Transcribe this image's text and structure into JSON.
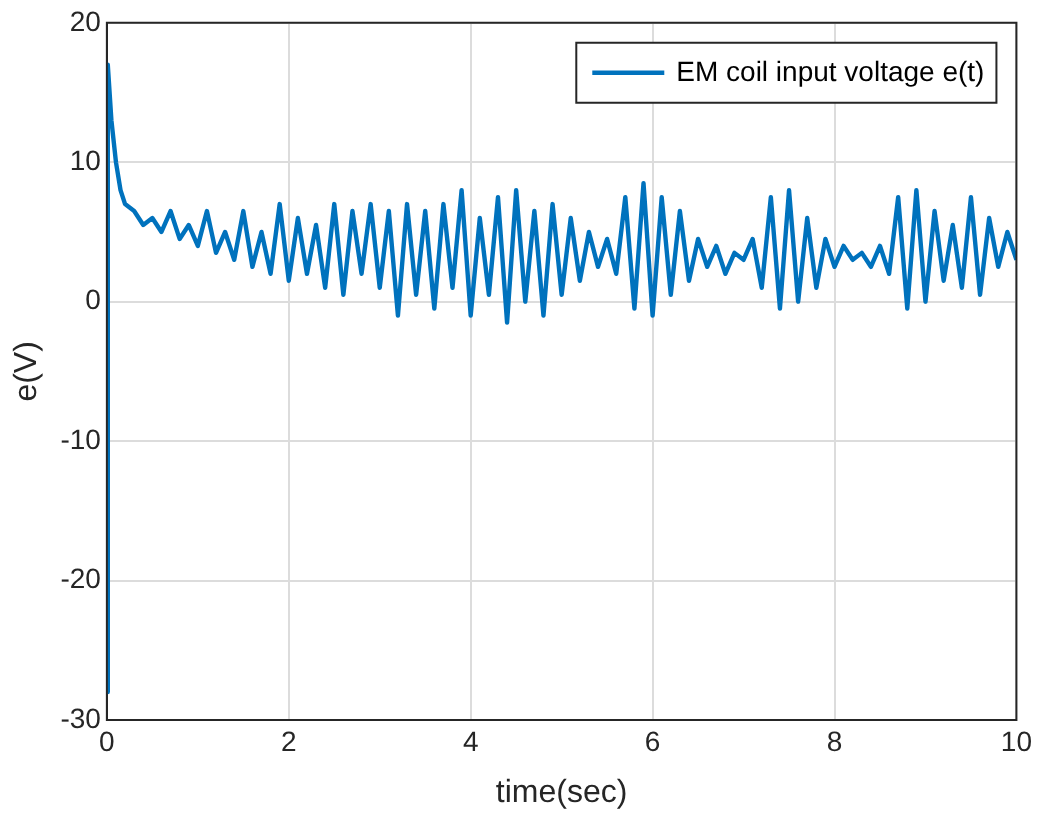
{
  "chart_data": {
    "type": "line",
    "xlabel": "time(sec)",
    "ylabel": "e(V)",
    "xlim": [
      0,
      10
    ],
    "ylim": [
      -30,
      20
    ],
    "xticks": [
      0,
      2,
      4,
      6,
      8,
      10
    ],
    "yticks": [
      -30,
      -20,
      -10,
      0,
      10,
      20
    ],
    "grid": true,
    "legend": "top right",
    "line_style": "solid",
    "marker": "none",
    "x": [
      0,
      0.01,
      0.05,
      0.1,
      0.15,
      0.2,
      0.3,
      0.4,
      0.5,
      0.6,
      0.7,
      0.8,
      0.9,
      1.0,
      1.1,
      1.2,
      1.3,
      1.4,
      1.5,
      1.6,
      1.7,
      1.8,
      1.9,
      2.0,
      2.1,
      2.2,
      2.3,
      2.4,
      2.5,
      2.6,
      2.7,
      2.8,
      2.9,
      3.0,
      3.1,
      3.2,
      3.3,
      3.4,
      3.5,
      3.6,
      3.7,
      3.8,
      3.9,
      4.0,
      4.1,
      4.2,
      4.3,
      4.4,
      4.5,
      4.6,
      4.7,
      4.8,
      4.9,
      5.0,
      5.1,
      5.2,
      5.3,
      5.4,
      5.5,
      5.6,
      5.7,
      5.8,
      5.9,
      6.0,
      6.1,
      6.2,
      6.3,
      6.4,
      6.5,
      6.6,
      6.7,
      6.8,
      6.9,
      7.0,
      7.1,
      7.2,
      7.3,
      7.4,
      7.5,
      7.6,
      7.7,
      7.8,
      7.9,
      8.0,
      8.1,
      8.2,
      8.3,
      8.4,
      8.5,
      8.6,
      8.7,
      8.8,
      8.9,
      9.0,
      9.1,
      9.2,
      9.3,
      9.4,
      9.5,
      9.6,
      9.7,
      9.8,
      9.9,
      10.0
    ],
    "series": [
      {
        "name": "EM coil input voltage e(t)",
        "color": "#0072bd",
        "values": [
          -28,
          17,
          13,
          10,
          8,
          7,
          6.5,
          5.5,
          6,
          5,
          6.5,
          4.5,
          5.5,
          4,
          6.5,
          3.5,
          5,
          3,
          6.5,
          2.5,
          5,
          2,
          7,
          1.5,
          6,
          2,
          5.5,
          1,
          7,
          0.5,
          6.5,
          2,
          7,
          1,
          6.5,
          -1,
          7,
          0.5,
          6.5,
          -0.5,
          7,
          1,
          8,
          -1,
          6,
          0.5,
          7.5,
          -1.5,
          8,
          0,
          6.5,
          -1,
          7,
          0.5,
          6,
          1.5,
          5,
          2.5,
          4.5,
          2,
          7.5,
          -0.5,
          8.5,
          -1,
          7.5,
          0.5,
          6.5,
          1.5,
          4.5,
          2.5,
          4,
          2,
          3.5,
          3,
          4.5,
          1,
          7.5,
          -0.5,
          8,
          0,
          6,
          1,
          4.5,
          2.5,
          4,
          3,
          3.5,
          2.5,
          4,
          2,
          7.5,
          -0.5,
          8,
          0,
          6.5,
          1.5,
          5.5,
          1,
          7.5,
          0.5,
          6,
          2.5,
          5,
          3
        ]
      }
    ]
  }
}
